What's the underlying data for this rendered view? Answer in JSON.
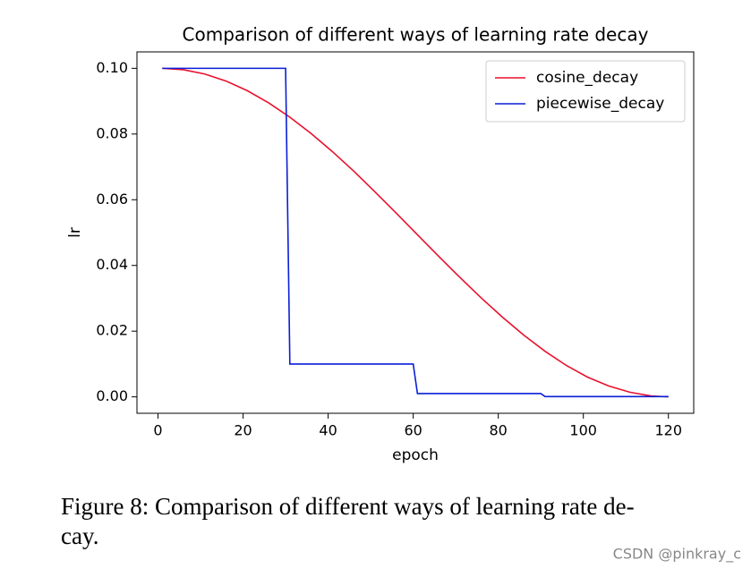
{
  "chart_data": {
    "type": "line",
    "title": "Comparison of different ways of learning rate decay",
    "xlabel": "epoch",
    "ylabel": "lr",
    "xlim": [
      -4.95,
      125.95
    ],
    "ylim": [
      -0.005,
      0.105
    ],
    "xticks": [
      0,
      20,
      40,
      60,
      80,
      100,
      120
    ],
    "yticks": [
      {
        "value": 0,
        "label": "0.00"
      },
      0.02,
      0.04,
      0.06,
      0.08,
      {
        "value": 0.1,
        "label": "0.10"
      }
    ],
    "legend": "upper right",
    "series": [
      {
        "name": "cosine_decay",
        "color": "#e8112d",
        "x": [
          1,
          6,
          11,
          16,
          21,
          26,
          31,
          36,
          41,
          46,
          51,
          56,
          61,
          66,
          71,
          76,
          81,
          86,
          91,
          96,
          101,
          106,
          111,
          116,
          120
        ],
        "values": [
          0.1,
          0.09957,
          0.09827,
          0.09613,
          0.09319,
          0.0895,
          0.08513,
          0.08014,
          0.07465,
          0.06873,
          0.06241,
          0.05593,
          0.04934,
          0.04277,
          0.03632,
          0.03011,
          0.02423,
          0.01879,
          0.01387,
          0.00957,
          0.006,
          0.00331,
          0.00139,
          0.00027,
          0
        ]
      },
      {
        "name": "piecewise_decay",
        "color": "#0a1fd6",
        "x": [
          1,
          30,
          31,
          60,
          61,
          90,
          91,
          120
        ],
        "values": [
          0.1,
          0.1,
          0.01,
          0.01,
          0.001,
          0.001,
          0.0001,
          0.0001
        ]
      }
    ]
  },
  "caption": [
    "Figure 8: Comparison of different ways of learning rate de-",
    "cay."
  ],
  "watermark": "CSDN @pinkray_c"
}
